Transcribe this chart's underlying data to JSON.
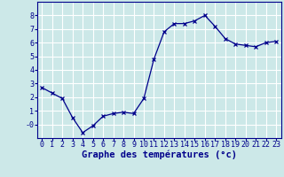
{
  "hours": [
    0,
    1,
    2,
    3,
    4,
    5,
    6,
    7,
    8,
    9,
    10,
    11,
    12,
    13,
    14,
    15,
    16,
    17,
    18,
    19,
    20,
    21,
    22,
    23
  ],
  "temps": [
    2.7,
    2.3,
    1.9,
    0.5,
    -0.6,
    -0.1,
    0.6,
    0.8,
    0.9,
    0.8,
    1.9,
    4.8,
    6.8,
    7.4,
    7.4,
    7.6,
    8.0,
    7.2,
    6.3,
    5.9,
    5.8,
    5.7,
    6.0,
    6.1
  ],
  "xlabel": "Graphe des températures (°c)",
  "ylim": [
    -1,
    9
  ],
  "line_color": "#00008B",
  "marker": "x",
  "marker_color": "#00008B",
  "bg_color": "#cce8e8",
  "grid_color": "#ffffff",
  "tick_color": "#00008B",
  "xlabel_color": "#00008B",
  "xlabel_fontsize": 7.5,
  "tick_fontsize": 6.0
}
